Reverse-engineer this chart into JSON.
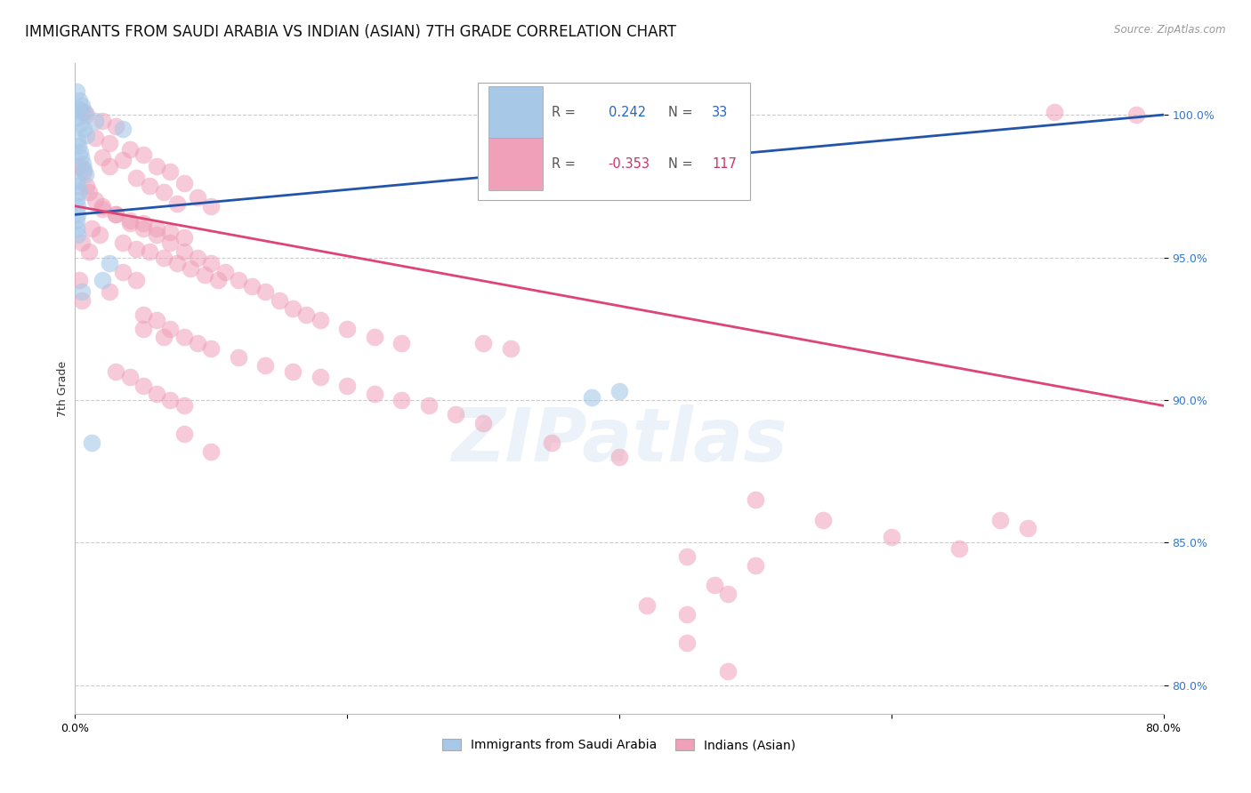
{
  "title": "IMMIGRANTS FROM SAUDI ARABIA VS INDIAN (ASIAN) 7TH GRADE CORRELATION CHART",
  "source": "Source: ZipAtlas.com",
  "ylabel": "7th Grade",
  "xlim": [
    0.0,
    80.0
  ],
  "ylim": [
    79.0,
    101.8
  ],
  "yticks": [
    80.0,
    85.0,
    90.0,
    95.0,
    100.0
  ],
  "ytick_labels": [
    "80.0%",
    "85.0%",
    "90.0%",
    "95.0%",
    "100.0%"
  ],
  "xticks": [
    0.0,
    20.0,
    40.0,
    60.0,
    80.0
  ],
  "xtick_labels": [
    "0.0%",
    "",
    "",
    "",
    "80.0%"
  ],
  "blue_color": "#a8c8e8",
  "pink_color": "#f0a0b8",
  "blue_line_color": "#2255aa",
  "pink_line_color": "#dd4477",
  "blue_scatter": [
    [
      0.1,
      100.8
    ],
    [
      0.3,
      100.5
    ],
    [
      0.5,
      100.3
    ],
    [
      0.7,
      100.1
    ],
    [
      0.2,
      99.9
    ],
    [
      0.4,
      99.7
    ],
    [
      0.6,
      99.5
    ],
    [
      0.8,
      99.3
    ],
    [
      0.15,
      99.1
    ],
    [
      0.25,
      98.9
    ],
    [
      0.35,
      98.7
    ],
    [
      0.45,
      98.5
    ],
    [
      0.55,
      98.3
    ],
    [
      0.65,
      98.1
    ],
    [
      0.75,
      97.9
    ],
    [
      0.1,
      97.7
    ],
    [
      0.2,
      97.5
    ],
    [
      0.3,
      97.3
    ],
    [
      0.1,
      97.0
    ],
    [
      0.15,
      96.8
    ],
    [
      0.2,
      96.5
    ],
    [
      1.5,
      99.8
    ],
    [
      3.5,
      99.5
    ],
    [
      0.1,
      96.0
    ],
    [
      0.2,
      95.8
    ],
    [
      2.5,
      94.8
    ],
    [
      2.0,
      94.2
    ],
    [
      0.3,
      100.2
    ],
    [
      40.0,
      90.3
    ],
    [
      38.0,
      90.1
    ],
    [
      1.2,
      88.5
    ],
    [
      0.5,
      93.8
    ],
    [
      0.1,
      96.3
    ]
  ],
  "pink_scatter": [
    [
      0.5,
      100.1
    ],
    [
      0.8,
      100.0
    ],
    [
      78.0,
      100.0
    ],
    [
      72.0,
      100.1
    ],
    [
      2.0,
      99.8
    ],
    [
      3.0,
      99.6
    ],
    [
      1.5,
      99.2
    ],
    [
      2.5,
      99.0
    ],
    [
      4.0,
      98.8
    ],
    [
      5.0,
      98.6
    ],
    [
      3.5,
      98.4
    ],
    [
      6.0,
      98.2
    ],
    [
      7.0,
      98.0
    ],
    [
      4.5,
      97.8
    ],
    [
      8.0,
      97.6
    ],
    [
      5.5,
      97.5
    ],
    [
      6.5,
      97.3
    ],
    [
      9.0,
      97.1
    ],
    [
      7.5,
      96.9
    ],
    [
      10.0,
      96.8
    ],
    [
      3.0,
      96.5
    ],
    [
      4.0,
      96.3
    ],
    [
      5.0,
      96.2
    ],
    [
      6.0,
      96.0
    ],
    [
      7.0,
      95.9
    ],
    [
      8.0,
      95.7
    ],
    [
      3.5,
      95.5
    ],
    [
      4.5,
      95.3
    ],
    [
      5.5,
      95.2
    ],
    [
      6.5,
      95.0
    ],
    [
      7.5,
      94.8
    ],
    [
      8.5,
      94.6
    ],
    [
      9.5,
      94.4
    ],
    [
      10.5,
      94.2
    ],
    [
      2.0,
      96.8
    ],
    [
      3.0,
      96.5
    ],
    [
      4.0,
      96.2
    ],
    [
      5.0,
      96.0
    ],
    [
      6.0,
      95.8
    ],
    [
      7.0,
      95.5
    ],
    [
      8.0,
      95.2
    ],
    [
      9.0,
      95.0
    ],
    [
      10.0,
      94.8
    ],
    [
      11.0,
      94.5
    ],
    [
      12.0,
      94.2
    ],
    [
      13.0,
      94.0
    ],
    [
      14.0,
      93.8
    ],
    [
      15.0,
      93.5
    ],
    [
      16.0,
      93.2
    ],
    [
      17.0,
      93.0
    ],
    [
      18.0,
      92.8
    ],
    [
      20.0,
      92.5
    ],
    [
      22.0,
      92.2
    ],
    [
      24.0,
      92.0
    ],
    [
      5.0,
      93.0
    ],
    [
      6.0,
      92.8
    ],
    [
      7.0,
      92.5
    ],
    [
      8.0,
      92.2
    ],
    [
      9.0,
      92.0
    ],
    [
      10.0,
      91.8
    ],
    [
      12.0,
      91.5
    ],
    [
      14.0,
      91.2
    ],
    [
      16.0,
      91.0
    ],
    [
      18.0,
      90.8
    ],
    [
      20.0,
      90.5
    ],
    [
      22.0,
      90.2
    ],
    [
      24.0,
      90.0
    ],
    [
      26.0,
      89.8
    ],
    [
      28.0,
      89.5
    ],
    [
      30.0,
      89.2
    ],
    [
      3.0,
      91.0
    ],
    [
      4.0,
      90.8
    ],
    [
      5.0,
      90.5
    ],
    [
      6.0,
      90.2
    ],
    [
      7.0,
      90.0
    ],
    [
      8.0,
      89.8
    ],
    [
      3.5,
      94.5
    ],
    [
      4.5,
      94.2
    ],
    [
      2.5,
      93.8
    ],
    [
      1.5,
      97.0
    ],
    [
      2.0,
      96.7
    ],
    [
      0.8,
      97.5
    ],
    [
      1.0,
      97.3
    ],
    [
      0.3,
      98.2
    ],
    [
      0.6,
      98.0
    ],
    [
      1.2,
      96.0
    ],
    [
      1.8,
      95.8
    ],
    [
      35.0,
      88.5
    ],
    [
      40.0,
      88.0
    ],
    [
      0.5,
      95.5
    ],
    [
      1.0,
      95.2
    ],
    [
      2.0,
      98.5
    ],
    [
      2.5,
      98.2
    ],
    [
      50.0,
      86.5
    ],
    [
      55.0,
      85.8
    ],
    [
      60.0,
      85.2
    ],
    [
      65.0,
      84.8
    ],
    [
      45.0,
      84.5
    ],
    [
      50.0,
      84.2
    ],
    [
      47.0,
      83.5
    ],
    [
      48.0,
      83.2
    ],
    [
      42.0,
      82.8
    ],
    [
      45.0,
      82.5
    ],
    [
      45.0,
      81.5
    ],
    [
      48.0,
      80.5
    ],
    [
      70.0,
      85.5
    ],
    [
      68.0,
      85.8
    ],
    [
      5.0,
      92.5
    ],
    [
      6.5,
      92.2
    ],
    [
      8.0,
      88.8
    ],
    [
      10.0,
      88.2
    ],
    [
      0.3,
      94.2
    ],
    [
      0.5,
      93.5
    ],
    [
      30.0,
      92.0
    ],
    [
      32.0,
      91.8
    ]
  ],
  "blue_trend_x": [
    0.0,
    80.0
  ],
  "blue_trend_y": [
    96.5,
    100.0
  ],
  "pink_trend_x": [
    0.0,
    80.0
  ],
  "pink_trend_y": [
    96.8,
    89.8
  ],
  "legend_blue_label": "Immigrants from Saudi Arabia",
  "legend_pink_label": "Indians (Asian)",
  "watermark_text": "ZIPatlas",
  "background_color": "#ffffff",
  "title_fontsize": 12,
  "axis_label_fontsize": 9,
  "tick_fontsize": 9
}
